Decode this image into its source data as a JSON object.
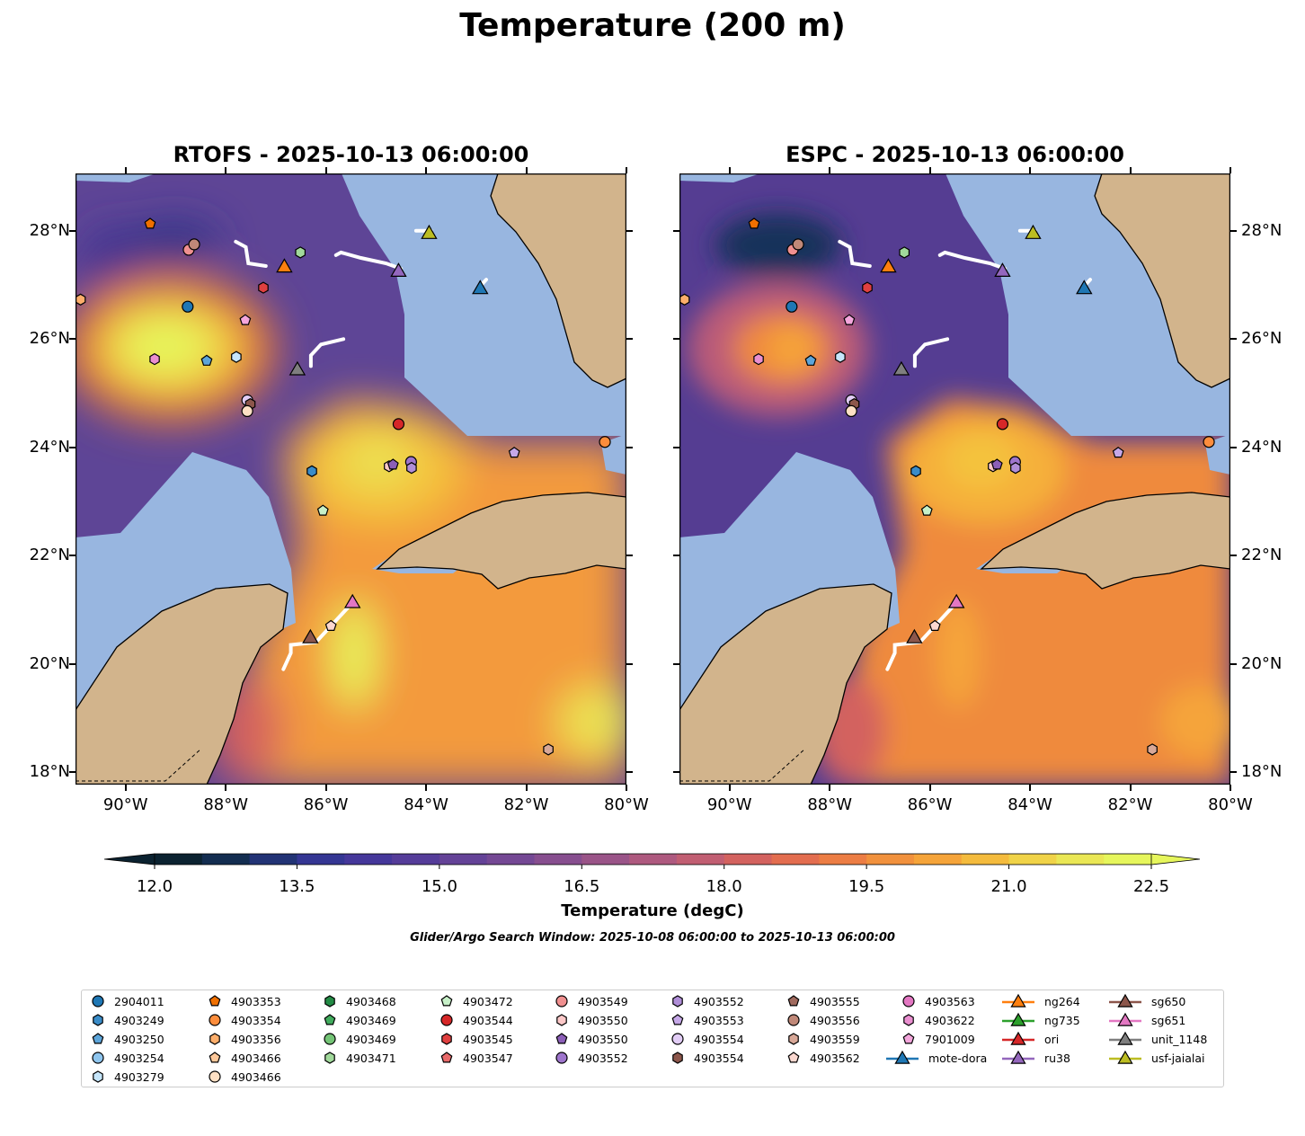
{
  "title": "Temperature (200 m)",
  "panels": [
    {
      "title": "RTOFS - 2025-10-13 06:00:00",
      "model": "rtofs"
    },
    {
      "title": "ESPC - 2025-10-13 06:00:00",
      "model": "espc"
    }
  ],
  "colors": {
    "land": "#d2b48c",
    "masked_ocean": "#98b6e0"
  },
  "chart_data": {
    "type": "contour-map",
    "title": "Temperature (200 m)",
    "xlim": [
      -91,
      -80
    ],
    "ylim": [
      17.77,
      29.06
    ],
    "x_ticks": [
      "90°W",
      "88°W",
      "86°W",
      "84°W",
      "82°W",
      "80°W"
    ],
    "x_tick_values": [
      -90,
      -88,
      -86,
      -84,
      -82,
      -80
    ],
    "y_ticks": [
      "18°N",
      "20°N",
      "22°N",
      "24°N",
      "26°N",
      "28°N"
    ],
    "y_tick_values": [
      18,
      20,
      22,
      24,
      26,
      28
    ],
    "colorbar": {
      "label": "Temperature (degC)",
      "min": 12.0,
      "max": 22.5,
      "step": 0.5,
      "extend": "both",
      "tick_labels": [
        "12.0",
        "13.5",
        "15.0",
        "16.5",
        "18.0",
        "19.5",
        "21.0",
        "22.5"
      ],
      "tick_values": [
        12,
        13.5,
        15,
        16.5,
        18,
        19.5,
        21,
        22.5
      ],
      "stops": [
        "#0b2230",
        "#16305a",
        "#2e3590",
        "#45379a",
        "#5a3e98",
        "#6e4696",
        "#874e8f",
        "#a05686",
        "#bb5c78",
        "#d3625f",
        "#e8704a",
        "#f08a3e",
        "#f5a43a",
        "#f4c33e",
        "#ebe252",
        "#e6f65c"
      ]
    },
    "window_text": "Glider/Argo Search Window: 2025-10-08 06:00:00 to 2025-10-13 06:00:00",
    "legend": [
      {
        "name": "2904011",
        "shape": "circle",
        "color": "#1f77b4"
      },
      {
        "name": "4903249",
        "shape": "hexagon",
        "color": "#3a8cc8"
      },
      {
        "name": "4903250",
        "shape": "pentagon",
        "color": "#5da5da"
      },
      {
        "name": "4903254",
        "shape": "circle",
        "color": "#8ec5ee"
      },
      {
        "name": "4903279",
        "shape": "hexagon",
        "color": "#c6e6fb"
      },
      {
        "name": "4903353",
        "shape": "pentagon",
        "color": "#f07000"
      },
      {
        "name": "4903354",
        "shape": "circle",
        "color": "#fd8d3c"
      },
      {
        "name": "4903356",
        "shape": "hexagon",
        "color": "#fdae6b"
      },
      {
        "name": "4903466",
        "shape": "pentagon",
        "color": "#fdc89a"
      },
      {
        "name": "4903466",
        "shape": "circle",
        "color": "#fee0c4"
      },
      {
        "name": "4903468",
        "shape": "hexagon",
        "color": "#238b45"
      },
      {
        "name": "4903469",
        "shape": "pentagon",
        "color": "#41ab5d"
      },
      {
        "name": "4903469",
        "shape": "circle",
        "color": "#74c476"
      },
      {
        "name": "4903471",
        "shape": "hexagon",
        "color": "#a1d99b"
      },
      {
        "name": "4903472",
        "shape": "pentagon",
        "color": "#c7f0c8"
      },
      {
        "name": "4903544",
        "shape": "circle",
        "color": "#d62728"
      },
      {
        "name": "4903545",
        "shape": "hexagon",
        "color": "#e04040"
      },
      {
        "name": "4903547",
        "shape": "pentagon",
        "color": "#e86a6a"
      },
      {
        "name": "4903549",
        "shape": "circle",
        "color": "#f09090"
      },
      {
        "name": "4903550",
        "shape": "hexagon",
        "color": "#fcc8c8"
      },
      {
        "name": "4903550",
        "shape": "pentagon",
        "color": "#8c5fb8"
      },
      {
        "name": "4903552",
        "shape": "circle",
        "color": "#9e75cc"
      },
      {
        "name": "4903552",
        "shape": "hexagon",
        "color": "#b08ed8"
      },
      {
        "name": "4903553",
        "shape": "pentagon",
        "color": "#c6a8e8"
      },
      {
        "name": "4903554",
        "shape": "circle",
        "color": "#e2cdf6"
      },
      {
        "name": "4903554",
        "shape": "hexagon",
        "color": "#8c564b"
      },
      {
        "name": "4903555",
        "shape": "pentagon",
        "color": "#a06a5e"
      },
      {
        "name": "4903556",
        "shape": "circle",
        "color": "#c08878"
      },
      {
        "name": "4903559",
        "shape": "hexagon",
        "color": "#d8a898"
      },
      {
        "name": "4903562",
        "shape": "pentagon",
        "color": "#fbd8d0"
      },
      {
        "name": "4903563",
        "shape": "circle",
        "color": "#e377c2"
      },
      {
        "name": "4903622",
        "shape": "hexagon",
        "color": "#ea8fd0"
      },
      {
        "name": "7901009",
        "shape": "pentagon",
        "color": "#f4a6dc"
      },
      {
        "name": "mote-dora",
        "shape": "triangle",
        "color": "#1f77b4"
      },
      {
        "name": "ng264",
        "shape": "triangle",
        "color": "#ff7f0e"
      },
      {
        "name": "ng735",
        "shape": "triangle",
        "color": "#2ca02c"
      },
      {
        "name": "ori",
        "shape": "triangle",
        "color": "#d62728"
      },
      {
        "name": "ru38",
        "shape": "triangle",
        "color": "#9467bd"
      },
      {
        "name": "sg650",
        "shape": "triangle",
        "color": "#8c564b"
      },
      {
        "name": "sg651",
        "shape": "triangle",
        "color": "#e377c2"
      },
      {
        "name": "unit_1148",
        "shape": "triangle",
        "color": "#7f7f7f"
      },
      {
        "name": "usf-jaialai",
        "shape": "triangle",
        "color": "#bcbd22"
      }
    ],
    "markers": [
      {
        "i": 0,
        "lon": -88.76,
        "lat": 26.6
      },
      {
        "i": 5,
        "lon": -89.51,
        "lat": 28.13
      },
      {
        "i": 18,
        "lon": -88.74,
        "lat": 27.65
      },
      {
        "i": 27,
        "lon": -88.63,
        "lat": 27.75
      },
      {
        "i": 16,
        "lon": -87.25,
        "lat": 26.95
      },
      {
        "i": 13,
        "lon": -86.51,
        "lat": 27.6
      },
      {
        "i": 31,
        "lon": -89.42,
        "lat": 25.63
      },
      {
        "i": 2,
        "lon": -88.38,
        "lat": 25.6
      },
      {
        "i": 4,
        "lon": -87.79,
        "lat": 25.67
      },
      {
        "i": 32,
        "lon": -87.61,
        "lat": 26.35
      },
      {
        "i": 24,
        "lon": -87.57,
        "lat": 24.87
      },
      {
        "i": 25,
        "lon": -87.51,
        "lat": 24.8
      },
      {
        "i": 9,
        "lon": -87.57,
        "lat": 24.67
      },
      {
        "i": 15,
        "lon": -84.55,
        "lat": 24.43
      },
      {
        "i": 6,
        "lon": -80.43,
        "lat": 24.1
      },
      {
        "i": 23,
        "lon": -82.24,
        "lat": 23.9
      },
      {
        "i": 19,
        "lon": -84.74,
        "lat": 23.65
      },
      {
        "i": 20,
        "lon": -84.66,
        "lat": 23.68
      },
      {
        "i": 21,
        "lon": -84.3,
        "lat": 23.73
      },
      {
        "i": 22,
        "lon": -84.29,
        "lat": 23.62
      },
      {
        "i": 1,
        "lon": -86.28,
        "lat": 23.56
      },
      {
        "i": 14,
        "lon": -86.06,
        "lat": 22.83
      },
      {
        "i": 29,
        "lon": -85.9,
        "lat": 20.7
      },
      {
        "i": 28,
        "lon": -81.56,
        "lat": 18.42
      },
      {
        "i": 7,
        "lon": -90.9,
        "lat": 26.73
      },
      {
        "i": 34,
        "lon": -86.83,
        "lat": 27.35
      },
      {
        "i": 37,
        "lon": -84.55,
        "lat": 27.27
      },
      {
        "i": 41,
        "lon": -83.94,
        "lat": 27.97
      },
      {
        "i": 33,
        "lon": -82.92,
        "lat": 26.95
      },
      {
        "i": 40,
        "lon": -86.57,
        "lat": 25.45
      },
      {
        "i": 39,
        "lon": -85.47,
        "lat": 21.15
      },
      {
        "i": 38,
        "lon": -86.31,
        "lat": 20.5
      }
    ],
    "glider_tracks": [
      [
        [
          -87.8,
          27.8
        ],
        [
          -87.6,
          27.7
        ],
        [
          -87.55,
          27.4
        ],
        [
          -87.2,
          27.35
        ]
      ],
      [
        [
          -84.5,
          27.3
        ],
        [
          -84.8,
          27.4
        ],
        [
          -85.3,
          27.5
        ],
        [
          -85.7,
          27.6
        ],
        [
          -85.8,
          27.55
        ]
      ],
      [
        [
          -85.65,
          26.0
        ],
        [
          -86.1,
          25.9
        ],
        [
          -86.3,
          25.7
        ],
        [
          -86.3,
          25.5
        ]
      ],
      [
        [
          -85.5,
          21.1
        ],
        [
          -85.9,
          20.7
        ],
        [
          -86.2,
          20.4
        ],
        [
          -86.7,
          20.35
        ],
        [
          -86.7,
          20.2
        ],
        [
          -86.85,
          19.9
        ]
      ],
      [
        [
          -83.9,
          28.0
        ],
        [
          -84.2,
          28.0
        ]
      ],
      [
        [
          -82.9,
          27.0
        ],
        [
          -82.8,
          27.1
        ]
      ]
    ]
  }
}
